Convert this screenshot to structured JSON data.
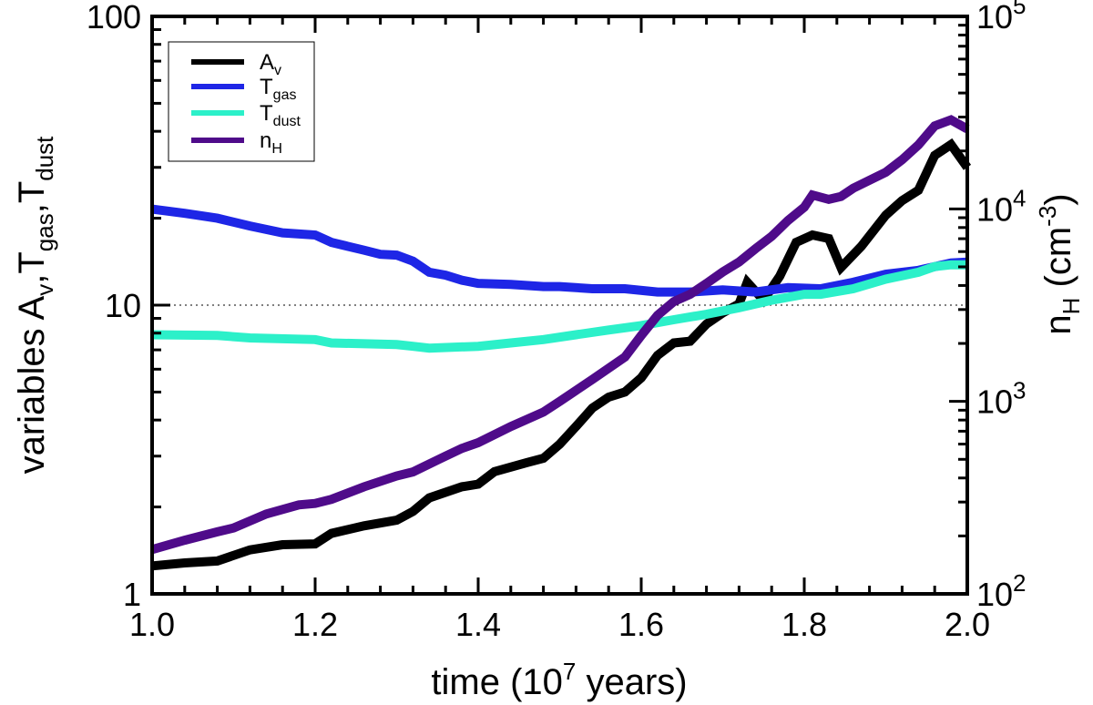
{
  "chart_data": {
    "type": "line",
    "xlabel": {
      "main": "time (10",
      "sup": "7",
      "end": " years)"
    },
    "ylabel_left": {
      "prefix": "variables A",
      "sub1": "v",
      "sep1": ",T",
      "sub2": "gas",
      "sep2": ",T",
      "sub3": "dust"
    },
    "ylabel_right": {
      "prefix": "n",
      "sub": "H",
      "mid": " (cm",
      "sup": "-3",
      "end": ")"
    },
    "xlim": [
      1.0,
      2.0
    ],
    "ylim_left": [
      1,
      100
    ],
    "ylim_right": [
      100,
      100000
    ],
    "yscale_left": "log",
    "yscale_right": "log",
    "x_ticks": [
      "1.0",
      "1.2",
      "1.4",
      "1.6",
      "1.8",
      "2.0"
    ],
    "y_left_ticks": [
      "1",
      "10",
      "100"
    ],
    "y_right_ticks": [
      {
        "base": "10",
        "exp": "2"
      },
      {
        "base": "10",
        "exp": "3"
      },
      {
        "base": "10",
        "exp": "4"
      },
      {
        "base": "10",
        "exp": "5"
      }
    ],
    "reference_line_y": 10,
    "legend_position": "top-left",
    "series": [
      {
        "name": "A",
        "name_sub": "v",
        "color": "#000000",
        "axis": "left",
        "x": [
          1.0,
          1.04,
          1.08,
          1.12,
          1.16,
          1.2,
          1.22,
          1.26,
          1.3,
          1.32,
          1.34,
          1.38,
          1.4,
          1.42,
          1.46,
          1.48,
          1.5,
          1.52,
          1.54,
          1.56,
          1.58,
          1.6,
          1.62,
          1.64,
          1.66,
          1.68,
          1.7,
          1.72,
          1.73,
          1.75,
          1.77,
          1.79,
          1.81,
          1.83,
          1.845,
          1.87,
          1.9,
          1.92,
          1.94,
          1.96,
          1.98,
          2.0
        ],
        "y": [
          1.25,
          1.28,
          1.3,
          1.42,
          1.48,
          1.49,
          1.62,
          1.72,
          1.8,
          1.93,
          2.15,
          2.35,
          2.4,
          2.65,
          2.85,
          2.95,
          3.3,
          3.8,
          4.4,
          4.8,
          5.0,
          5.6,
          6.7,
          7.4,
          7.5,
          8.6,
          9.4,
          10.1,
          12.0,
          10.4,
          12.6,
          16.5,
          17.5,
          17.0,
          13.5,
          16.0,
          20.5,
          23.0,
          25.0,
          33.0,
          36.0,
          30.0
        ]
      },
      {
        "name": "T",
        "name_sub": "gas",
        "color": "#1e26e6",
        "axis": "left",
        "x": [
          1.0,
          1.04,
          1.08,
          1.12,
          1.16,
          1.2,
          1.22,
          1.26,
          1.28,
          1.3,
          1.32,
          1.34,
          1.36,
          1.38,
          1.4,
          1.44,
          1.48,
          1.5,
          1.54,
          1.58,
          1.62,
          1.66,
          1.7,
          1.74,
          1.78,
          1.82,
          1.86,
          1.9,
          1.94,
          1.96,
          1.98,
          2.0
        ],
        "y": [
          21.5,
          20.8,
          20.0,
          18.8,
          17.8,
          17.5,
          16.5,
          15.5,
          15.0,
          14.9,
          14.2,
          13.0,
          12.7,
          12.2,
          11.9,
          11.8,
          11.6,
          11.6,
          11.4,
          11.4,
          11.1,
          11.1,
          11.3,
          11.1,
          11.5,
          11.4,
          12.0,
          12.8,
          13.2,
          13.6,
          14.0,
          14.1
        ]
      },
      {
        "name": "T",
        "name_sub": "dust",
        "color": "#2cf0c9",
        "axis": "left",
        "x": [
          1.0,
          1.08,
          1.12,
          1.2,
          1.22,
          1.3,
          1.32,
          1.34,
          1.4,
          1.44,
          1.48,
          1.52,
          1.56,
          1.6,
          1.64,
          1.68,
          1.72,
          1.76,
          1.8,
          1.82,
          1.86,
          1.9,
          1.94,
          1.96,
          1.98,
          2.0
        ],
        "y": [
          7.9,
          7.85,
          7.7,
          7.6,
          7.4,
          7.3,
          7.2,
          7.1,
          7.2,
          7.4,
          7.6,
          7.9,
          8.2,
          8.5,
          8.9,
          9.3,
          9.8,
          10.4,
          10.9,
          10.9,
          11.4,
          12.3,
          13.0,
          13.6,
          13.8,
          13.8
        ]
      },
      {
        "name": "n",
        "name_sub": "H",
        "color": "#4f0b8a",
        "axis": "right",
        "x": [
          1.0,
          1.04,
          1.08,
          1.1,
          1.14,
          1.18,
          1.2,
          1.22,
          1.26,
          1.3,
          1.32,
          1.36,
          1.38,
          1.4,
          1.44,
          1.48,
          1.5,
          1.54,
          1.58,
          1.6,
          1.62,
          1.64,
          1.66,
          1.68,
          1.7,
          1.72,
          1.74,
          1.76,
          1.78,
          1.8,
          1.81,
          1.83,
          1.845,
          1.86,
          1.9,
          1.92,
          1.94,
          1.96,
          1.98,
          2.0
        ],
        "y": [
          170,
          190,
          210,
          220,
          260,
          290,
          295,
          310,
          360,
          410,
          430,
          520,
          570,
          610,
          740,
          880,
          1000,
          1300,
          1700,
          2200,
          2800,
          3300,
          3600,
          4100,
          4700,
          5300,
          6200,
          7200,
          8700,
          10200,
          11800,
          11200,
          11600,
          12800,
          15500,
          18000,
          21500,
          27000,
          29000,
          26000
        ]
      }
    ]
  }
}
